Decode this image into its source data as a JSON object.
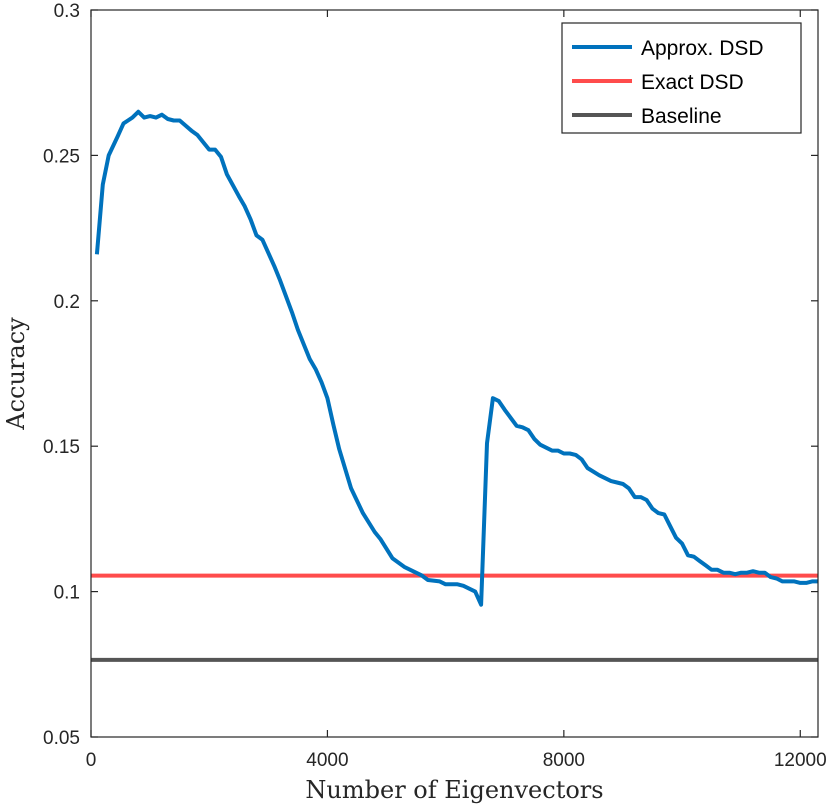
{
  "chart_data": {
    "type": "line",
    "title": "",
    "xlabel": "Number of Eigenvectors",
    "ylabel": "Accuracy",
    "xlim": [
      0,
      12300
    ],
    "ylim": [
      0.05,
      0.3
    ],
    "xticks": [
      0,
      4000,
      8000,
      12000
    ],
    "xtick_labels": [
      "0",
      "4000",
      "8000",
      "12000"
    ],
    "yticks": [
      0.05,
      0.1,
      0.15,
      0.2,
      0.25,
      0.3
    ],
    "ytick_labels": [
      "0.05",
      "0.1",
      "0.15",
      "0.2",
      "0.25",
      "0.3"
    ],
    "grid": false,
    "legend_position": "top-right",
    "series": [
      {
        "name": "Approx. DSD",
        "color": "#0072BD",
        "x": [
          100,
          200,
          300,
          450,
          550,
          700,
          800,
          900,
          1000,
          1100,
          1200,
          1300,
          1400,
          1500,
          1700,
          1800,
          2000,
          2100,
          2200,
          2300,
          2500,
          2600,
          2700,
          2800,
          2900,
          3000,
          3100,
          3200,
          3400,
          3500,
          3700,
          3800,
          3900,
          4000,
          4100,
          4200,
          4400,
          4600,
          4800,
          4900,
          5100,
          5300,
          5400,
          5600,
          5700,
          5900,
          6000,
          6200,
          6300,
          6400,
          6500,
          6600,
          6700,
          6800,
          6900,
          7000,
          7200,
          7300,
          7400,
          7500,
          7600,
          7800,
          7900,
          8000,
          8100,
          8200,
          8300,
          8400,
          8600,
          8700,
          8800,
          8900,
          9000,
          9100,
          9200,
          9300,
          9400,
          9500,
          9600,
          9700,
          9800,
          9900,
          10000,
          10100,
          10200,
          10300,
          10400,
          10500,
          10600,
          10700,
          10800,
          10900,
          11000,
          11100,
          11200,
          11300,
          11400,
          11500,
          11600,
          11700,
          11800,
          11900,
          12000,
          12100,
          12200,
          12300
        ],
        "values": [
          0.216,
          0.24,
          0.25,
          0.2565,
          0.261,
          0.263,
          0.265,
          0.263,
          0.2635,
          0.263,
          0.264,
          0.2625,
          0.262,
          0.262,
          0.2585,
          0.257,
          0.252,
          0.252,
          0.2495,
          0.2435,
          0.236,
          0.2325,
          0.228,
          0.2225,
          0.221,
          0.2165,
          0.212,
          0.207,
          0.196,
          0.19,
          0.18,
          0.1765,
          0.172,
          0.1665,
          0.1575,
          0.149,
          0.1355,
          0.127,
          0.1205,
          0.118,
          0.1115,
          0.1085,
          0.1075,
          0.1055,
          0.104,
          0.1035,
          0.1025,
          0.1025,
          0.102,
          0.101,
          0.1,
          0.0955,
          0.151,
          0.1665,
          0.1655,
          0.1625,
          0.157,
          0.1565,
          0.1555,
          0.1525,
          0.1505,
          0.1485,
          0.1485,
          0.1475,
          0.1475,
          0.147,
          0.1455,
          0.1425,
          0.14,
          0.139,
          0.138,
          0.1375,
          0.137,
          0.1355,
          0.1325,
          0.1325,
          0.1315,
          0.1285,
          0.127,
          0.1265,
          0.1225,
          0.1185,
          0.1165,
          0.1125,
          0.112,
          0.1105,
          0.109,
          0.1075,
          0.1075,
          0.1065,
          0.1065,
          0.106,
          0.1065,
          0.1065,
          0.107,
          0.1065,
          0.1065,
          0.105,
          0.1045,
          0.1035,
          0.1035,
          0.1035,
          0.103,
          0.103,
          0.1035,
          0.1035
        ]
      },
      {
        "name": "Exact DSD",
        "color": "#FF4C4C",
        "x": [
          0,
          12300
        ],
        "values": [
          0.1055,
          0.1055
        ]
      },
      {
        "name": "Baseline",
        "color": "#555555",
        "x": [
          0,
          12300
        ],
        "values": [
          0.0765,
          0.0765
        ]
      }
    ]
  }
}
